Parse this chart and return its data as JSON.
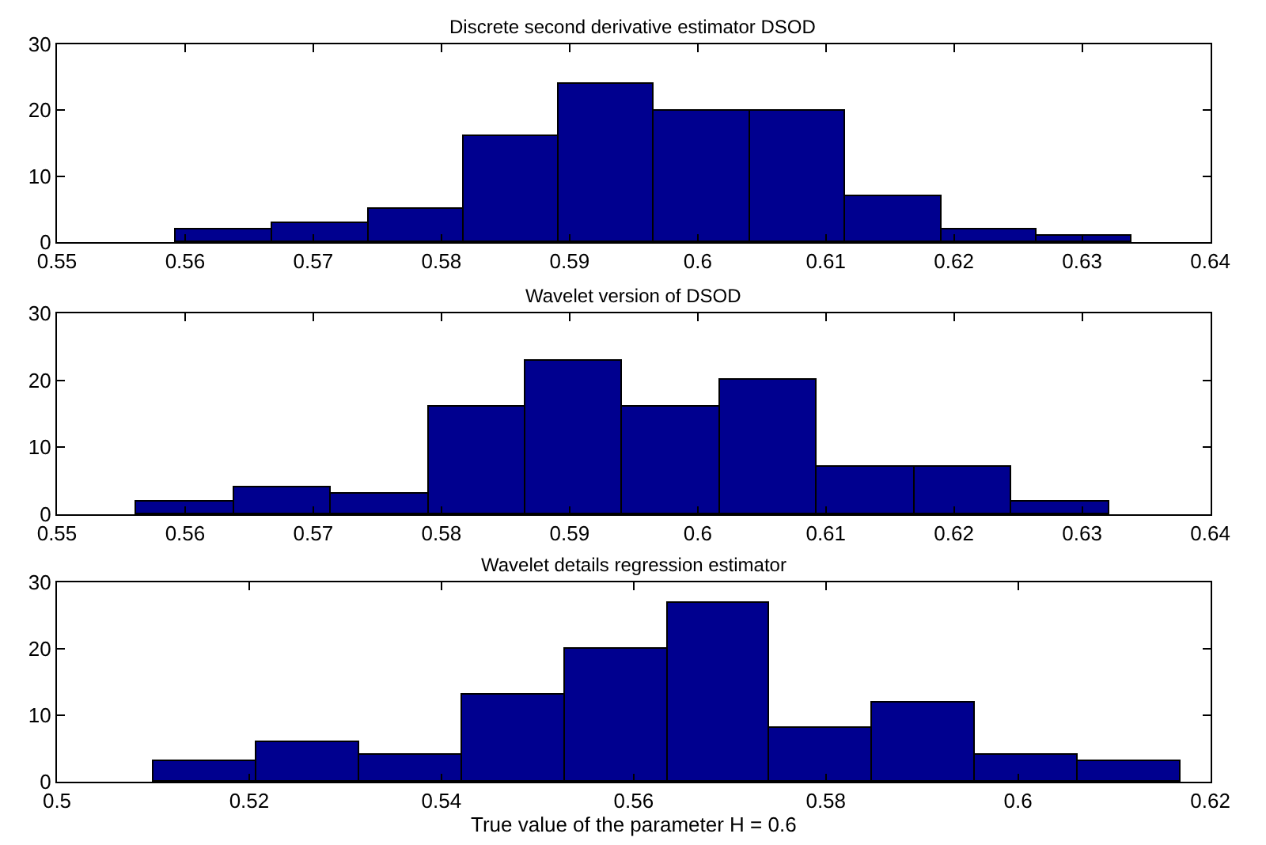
{
  "chart_data": [
    {
      "type": "histogram",
      "title": "Discrete second derivative estimator DSOD",
      "bins": [
        0.5593,
        0.5668,
        0.5743,
        0.5817,
        0.5892,
        0.5966,
        0.6041,
        0.6115,
        0.619,
        0.6264,
        0.6339
      ],
      "values": [
        2,
        3,
        5,
        16,
        24,
        20,
        20,
        7,
        2,
        1
      ],
      "color": "#00008f",
      "xlim": [
        0.55,
        0.64
      ],
      "xticks": [
        0.55,
        0.56,
        0.57,
        0.58,
        0.59,
        0.6,
        0.61,
        0.62,
        0.63,
        0.64
      ],
      "ylim": [
        0,
        30
      ],
      "yticks": [
        0,
        10,
        20,
        30
      ]
    },
    {
      "type": "histogram",
      "title": "Wavelet version of DSOD",
      "bins": [
        0.5562,
        0.5638,
        0.5714,
        0.579,
        0.5865,
        0.5941,
        0.6017,
        0.6093,
        0.6169,
        0.6245,
        0.6321
      ],
      "values": [
        2,
        4,
        3,
        16,
        23,
        16,
        20,
        7,
        7,
        2
      ],
      "color": "#00008f",
      "xlim": [
        0.55,
        0.64
      ],
      "xticks": [
        0.55,
        0.56,
        0.57,
        0.58,
        0.59,
        0.6,
        0.61,
        0.62,
        0.63,
        0.64
      ],
      "ylim": [
        0,
        30
      ],
      "yticks": [
        0,
        10,
        20,
        30
      ]
    },
    {
      "type": "histogram",
      "title": "Wavelet details regression estimator",
      "xlabel": "True value of the parameter H = 0.6",
      "bins": [
        0.51,
        0.5207,
        0.5314,
        0.5421,
        0.5528,
        0.5635,
        0.5741,
        0.5848,
        0.5955,
        0.6062,
        0.6169
      ],
      "values": [
        3,
        6,
        4,
        13,
        20,
        27,
        8,
        12,
        4,
        3
      ],
      "color": "#00008f",
      "xlim": [
        0.5,
        0.62
      ],
      "xticks": [
        0.5,
        0.52,
        0.54,
        0.56,
        0.58,
        0.6,
        0.62
      ],
      "ylim": [
        0,
        30
      ],
      "yticks": [
        0,
        10,
        20,
        30
      ]
    }
  ]
}
